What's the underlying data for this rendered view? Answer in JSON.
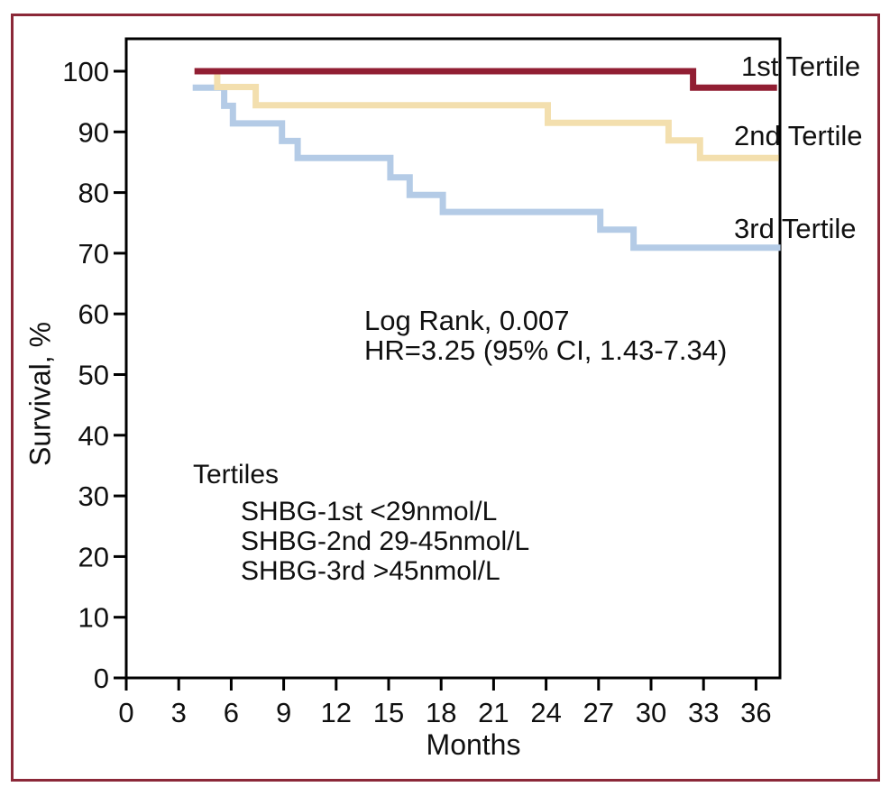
{
  "figure": {
    "border_color": "#8b2838",
    "background_color": "#ffffff",
    "text_color": "#101010",
    "axis_color": "#000000"
  },
  "chart_data": {
    "type": "line",
    "subtype": "kaplan-meier-step",
    "title": "",
    "xlabel": "Months",
    "ylabel": "Survival, %",
    "xlim": [
      0,
      37.5
    ],
    "ylim": [
      0,
      105
    ],
    "x_ticks": [
      0,
      3,
      6,
      9,
      12,
      15,
      18,
      21,
      24,
      27,
      30,
      33,
      36
    ],
    "y_ticks": [
      0,
      10,
      20,
      30,
      40,
      50,
      60,
      70,
      80,
      90,
      100
    ],
    "grid": false,
    "legend_position": "right-of-curves",
    "series": [
      {
        "name": "1st Tertile",
        "color": "#911e33",
        "points": [
          [
            3.9,
            100
          ],
          [
            32.4,
            100
          ],
          [
            32.4,
            97.3
          ],
          [
            37.2,
            97.3
          ]
        ]
      },
      {
        "name": "2nd Tertile",
        "color": "#f3dfae",
        "points": [
          [
            3.9,
            100
          ],
          [
            5.2,
            100
          ],
          [
            5.2,
            97.4
          ],
          [
            7.4,
            97.4
          ],
          [
            7.4,
            94.4
          ],
          [
            24.1,
            94.4
          ],
          [
            24.1,
            91.5
          ],
          [
            31.0,
            91.5
          ],
          [
            31.0,
            88.6
          ],
          [
            32.8,
            88.6
          ],
          [
            32.8,
            85.7
          ],
          [
            37.3,
            85.7
          ]
        ]
      },
      {
        "name": "3rd Tertile",
        "color": "#b4cbe6",
        "points": [
          [
            3.8,
            97.3
          ],
          [
            5.6,
            97.3
          ],
          [
            5.6,
            94.3
          ],
          [
            6.1,
            94.3
          ],
          [
            6.1,
            91.4
          ],
          [
            8.9,
            91.4
          ],
          [
            8.9,
            88.5
          ],
          [
            9.8,
            88.5
          ],
          [
            9.8,
            85.7
          ],
          [
            15.1,
            85.7
          ],
          [
            15.1,
            82.5
          ],
          [
            16.2,
            82.5
          ],
          [
            16.2,
            79.6
          ],
          [
            18.1,
            79.6
          ],
          [
            18.1,
            76.8
          ],
          [
            27.1,
            76.8
          ],
          [
            27.1,
            73.9
          ],
          [
            29.0,
            73.9
          ],
          [
            29.0,
            70.9
          ],
          [
            37.4,
            70.9
          ]
        ]
      }
    ],
    "stats_annotation": {
      "line1": "Log Rank, 0.007",
      "line2": "HR=3.25 (95% CI, 1.43-7.34)"
    },
    "legend": {
      "title": "Tertiles",
      "items": [
        "SHBG-1st <29nmol/L",
        "SHBG-2nd 29-45nmol/L",
        "SHBG-3rd >45nmol/L"
      ]
    }
  }
}
